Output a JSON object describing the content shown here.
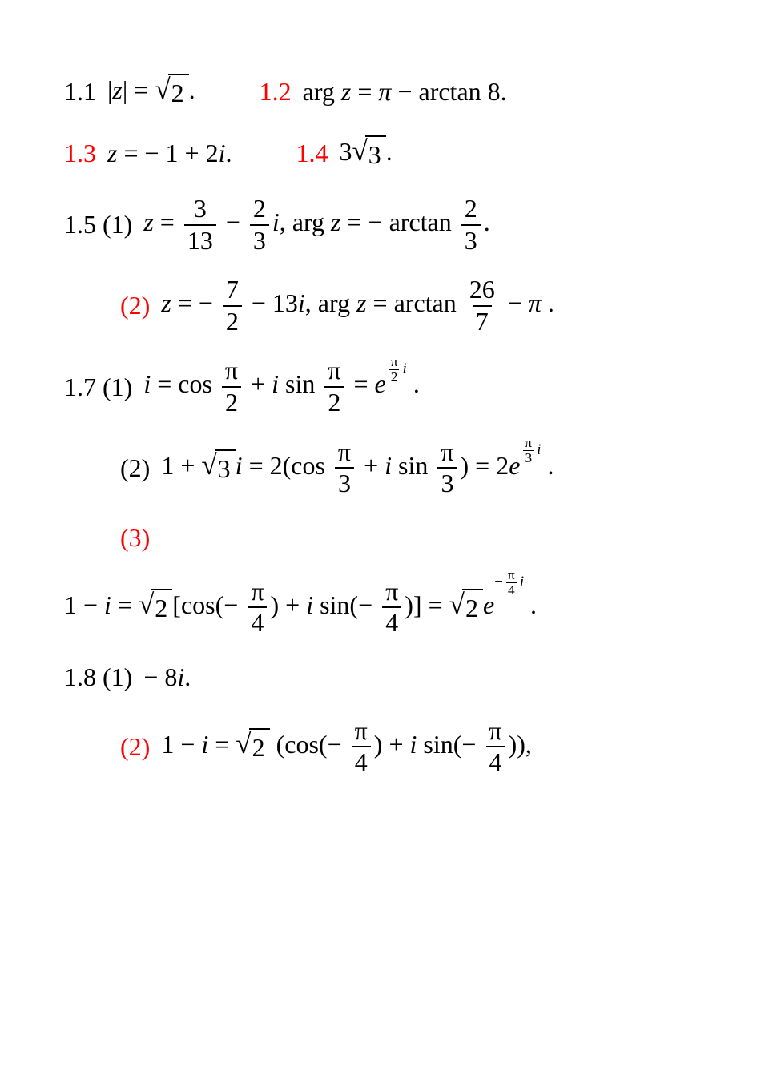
{
  "colors": {
    "text": "#000000",
    "accent": "#ff0000",
    "bg": "#ffffff"
  },
  "font": {
    "family": "Times New Roman",
    "size_pt": 24
  },
  "items": [
    {
      "row": 1,
      "parts": [
        {
          "label": "1.1",
          "label_red": false,
          "tokens": [
            "|",
            {
              "it": "z"
            },
            "| = ",
            {
              "sqrt": "2"
            },
            "."
          ]
        },
        {
          "label": "1.2",
          "label_red": true,
          "tokens": [
            "arg ",
            {
              "it": "z"
            },
            " = ",
            {
              "it": "π"
            },
            " − arctan 8."
          ]
        }
      ]
    },
    {
      "row": 2,
      "parts": [
        {
          "label": "1.3",
          "label_red": true,
          "tokens": [
            {
              "it": "z"
            },
            " = − 1 + 2",
            {
              "it": "i"
            },
            "."
          ]
        },
        {
          "label": "1.4",
          "label_red": true,
          "tokens": [
            "3",
            {
              "sqrt": "3"
            },
            "."
          ]
        }
      ]
    },
    {
      "row": 3,
      "parts": [
        {
          "label": "1.5 (1)",
          "label_red": false,
          "tokens": [
            {
              "it": "z"
            },
            " = ",
            {
              "frac": [
                "3",
                "13"
              ]
            },
            " − ",
            {
              "frac": [
                "2",
                "3"
              ]
            },
            {
              "it": "i"
            },
            ", arg ",
            {
              "it": "z"
            },
            " = − arctan ",
            {
              "frac": [
                "2",
                "3"
              ]
            },
            "."
          ]
        }
      ]
    },
    {
      "row": 4,
      "indent": 1,
      "parts": [
        {
          "label": "(2)",
          "label_red": true,
          "tokens": [
            {
              "it": "z"
            },
            " = − ",
            {
              "frac": [
                "7",
                "2"
              ]
            },
            " − 13",
            {
              "it": "i"
            },
            ", arg ",
            {
              "it": "z"
            },
            " = arctan ",
            {
              "frac": [
                "26",
                "7"
              ]
            },
            " − ",
            {
              "it": "π"
            },
            " ."
          ]
        }
      ]
    },
    {
      "row": 5,
      "parts": [
        {
          "label": "1.7 (1)",
          "label_red": false,
          "tokens": [
            {
              "it": "i"
            },
            " = cos ",
            {
              "frac": [
                "π",
                "2"
              ]
            },
            " + ",
            {
              "it": "i"
            },
            " sin ",
            {
              "frac": [
                "π",
                "2"
              ]
            },
            " = ",
            {
              "it": "e"
            },
            {
              "exp": [
                {
                  "frac": [
                    "π",
                    "2"
                  ]
                },
                {
                  "it": "i"
                }
              ]
            },
            " ."
          ]
        }
      ]
    },
    {
      "row": 6,
      "indent": 1,
      "parts": [
        {
          "label": "(2)",
          "label_red": false,
          "tokens": [
            "1 + ",
            {
              "sqrt": "3"
            },
            {
              "it": "i"
            },
            " = 2(cos ",
            {
              "frac": [
                "π",
                "3"
              ]
            },
            " + ",
            {
              "it": "i"
            },
            " sin ",
            {
              "frac": [
                "π",
                "3"
              ]
            },
            ") = 2",
            {
              "it": "e"
            },
            {
              "exp": [
                {
                  "frac": [
                    "π",
                    "3"
                  ]
                },
                {
                  "it": "i"
                }
              ]
            },
            " ."
          ]
        }
      ]
    },
    {
      "row": 7,
      "indent": 1,
      "parts": [
        {
          "label": "(3)",
          "label_red": true,
          "tokens": []
        }
      ]
    },
    {
      "row": 8,
      "indent": 2,
      "parts": [
        {
          "label": "",
          "label_red": false,
          "tokens": [
            "1 − ",
            {
              "it": "i"
            },
            " = ",
            {
              "sqrt": "2"
            },
            "[cos(− ",
            {
              "frac": [
                "π",
                "4"
              ]
            },
            ") + ",
            {
              "it": "i"
            },
            " sin(− ",
            {
              "frac": [
                "π",
                "4"
              ]
            },
            ")] = ",
            {
              "sqrt": "2"
            },
            {
              "it": "e"
            },
            {
              "exp": [
                "−",
                {
                  "frac": [
                    "π",
                    "4"
                  ]
                },
                {
                  "it": "i"
                }
              ]
            },
            " ."
          ]
        }
      ]
    },
    {
      "row": 9,
      "parts": [
        {
          "label": "1.8 (1)",
          "label_red": false,
          "tokens": [
            " − 8",
            {
              "it": "i"
            },
            "."
          ]
        }
      ]
    },
    {
      "row": 10,
      "indent": 1,
      "parts": [
        {
          "label": "(2)",
          "label_red": true,
          "tokens": [
            "1 − ",
            {
              "it": "i"
            },
            " = ",
            {
              "sqrt": "2"
            },
            " (cos(− ",
            {
              "frac": [
                "π",
                "4"
              ]
            },
            ") + ",
            {
              "it": "i"
            },
            " sin(− ",
            {
              "frac": [
                "π",
                "4"
              ]
            },
            ")),"
          ]
        }
      ]
    }
  ]
}
